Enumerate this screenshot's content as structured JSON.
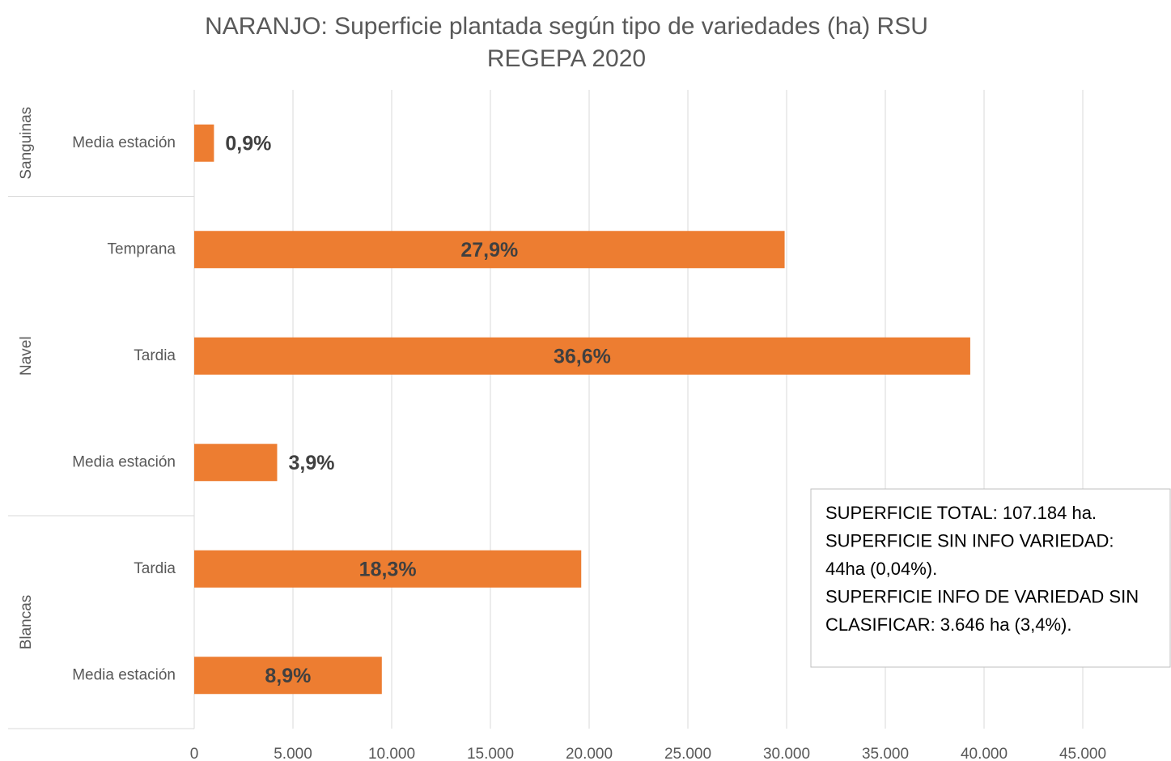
{
  "chart_data": {
    "type": "bar",
    "title": "NARANJO: Superficie plantada según tipo de variedades (ha) RSU",
    "subtitle": "REGEPA 2020",
    "color": "#ed7d31",
    "groups": [
      {
        "name": "Sanguinas",
        "categories": [
          "Media estación"
        ],
        "values": [
          1000
        ],
        "share_labels": [
          "0,9%"
        ]
      },
      {
        "name": "Navel",
        "categories": [
          "Temprana",
          "Tardia",
          "Media estación"
        ],
        "values": [
          29900,
          39300,
          4200
        ],
        "share_labels": [
          "27,9%",
          "36,6%",
          "3,9%"
        ]
      },
      {
        "name": "Blancas",
        "categories": [
          "Tardia",
          "Media estación"
        ],
        "values": [
          19600,
          9500
        ],
        "share_labels": [
          "18,3%",
          "8,9%"
        ]
      }
    ],
    "xlim": [
      0,
      45000
    ],
    "xticks": [
      0,
      {
        "value": 5000,
        "label": "5.000"
      },
      {
        "value": 10000,
        "label": "10.000"
      },
      {
        "value": 15000,
        "label": "15.000"
      },
      {
        "value": 20000,
        "label": "20.000"
      },
      {
        "value": 25000,
        "label": "25.000"
      },
      {
        "value": 30000,
        "label": "30.000"
      },
      {
        "value": 35000,
        "label": "35.000"
      },
      {
        "value": 40000,
        "label": "40.000"
      },
      {
        "value": 45000,
        "label": "45.000"
      }
    ],
    "grid": true,
    "annotation": [
      "SUPERFICIE TOTAL: 107.184 ha.",
      "SUPERFICIE SIN INFO VARIEDAD:",
      "44ha (0,04%).",
      "SUPERFICIE INFO DE VARIEDAD SIN",
      "CLASIFICAR: 3.646 ha (3,4%)."
    ]
  }
}
